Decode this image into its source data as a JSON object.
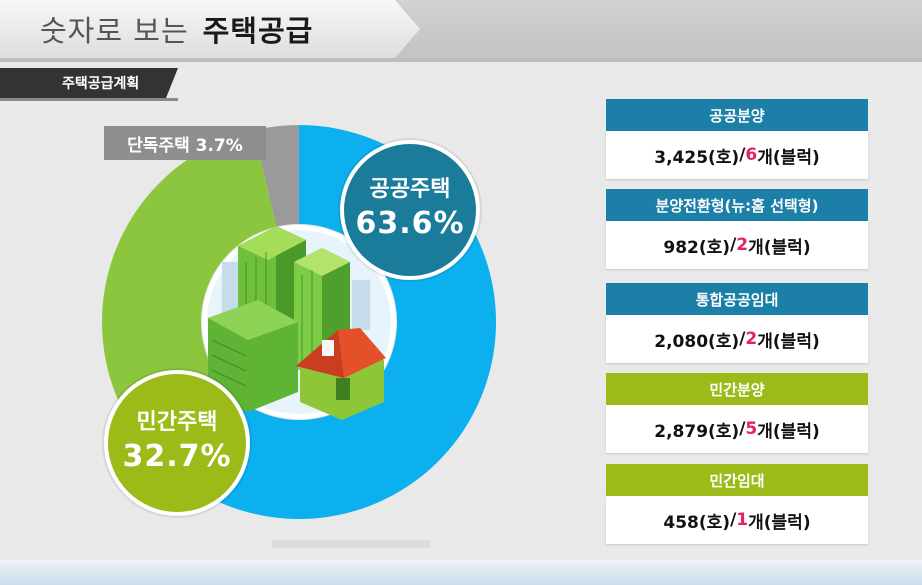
{
  "header": {
    "title_prefix": "숫자로 보는",
    "title_main": "주택공급",
    "section_tab": "주택공급계획"
  },
  "colors": {
    "public": "#0db0ee",
    "private": "#8cc63f",
    "detached": "#9a9a9a",
    "public_bubble": "#1b7b9b",
    "private_bubble": "#9dbb18",
    "block_count": "#e5235b"
  },
  "chart_data": {
    "type": "pie",
    "style": "donut",
    "slices": [
      {
        "label": "공공주택",
        "value": 63.6,
        "display": "63.6%"
      },
      {
        "label": "민간주택",
        "value": 32.7,
        "display": "32.7%"
      },
      {
        "label": "단독주택",
        "value": 3.7,
        "display": "단독주택 3.7%"
      }
    ]
  },
  "center_icon": "buildings-illustration",
  "cards": [
    {
      "title": "공공분양",
      "units": "3,425(호)",
      "sep": " / ",
      "blocks": "6",
      "blocks_suffix": "개(블럭)",
      "theme": "public"
    },
    {
      "title": "분양전환형(뉴:홈 선택형)",
      "units": "982(호)",
      "sep": " / ",
      "blocks": "2",
      "blocks_suffix": "개(블럭)",
      "theme": "public"
    },
    {
      "title": "통합공공임대",
      "units": "2,080(호)",
      "sep": " / ",
      "blocks": "2",
      "blocks_suffix": "개(블럭)",
      "theme": "public"
    },
    {
      "title": "민간분양",
      "units": "2,879(호)",
      "sep": " / ",
      "blocks": "5",
      "blocks_suffix": "개(블럭)",
      "theme": "private"
    },
    {
      "title": "민간임대",
      "units": "458(호)",
      "sep": " / ",
      "blocks": "1",
      "blocks_suffix": "개(블럭)",
      "theme": "private"
    }
  ]
}
